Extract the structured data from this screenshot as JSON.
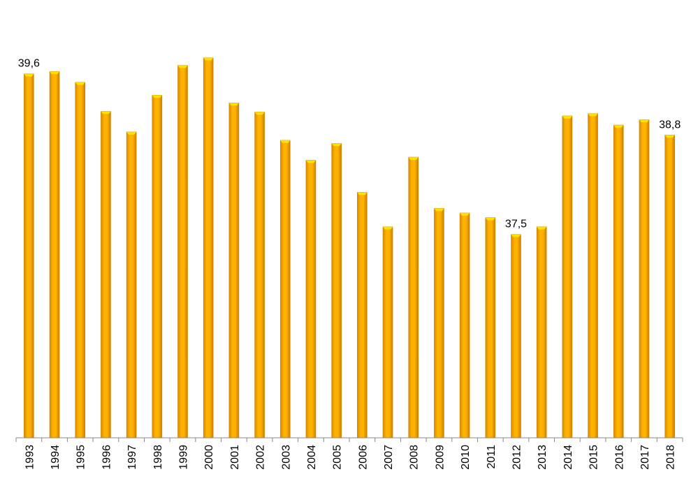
{
  "chart_data": {
    "type": "bar",
    "title": "",
    "xlabel": "",
    "ylabel": "",
    "categories": [
      "1993",
      "1994",
      "1995",
      "1996",
      "1997",
      "1998",
      "1999",
      "2000",
      "2001",
      "2002",
      "2003",
      "2004",
      "2005",
      "2006",
      "2007",
      "2008",
      "2009",
      "2010",
      "2011",
      "2012",
      "2013",
      "2014",
      "2015",
      "2016",
      "2017",
      "2018"
    ],
    "values": [
      39.6,
      39.63,
      39.49,
      39.11,
      38.84,
      39.32,
      39.71,
      39.81,
      39.22,
      39.1,
      38.73,
      38.47,
      38.69,
      38.05,
      37.6,
      38.51,
      37.84,
      37.78,
      37.72,
      37.5,
      37.6,
      39.05,
      39.08,
      38.93,
      39.0,
      38.8
    ],
    "value_labels": [
      {
        "index": 0,
        "text": "39,6"
      },
      {
        "index": 19,
        "text": "37,5"
      },
      {
        "index": 25,
        "text": "38,8"
      }
    ],
    "ylim": [
      34.84,
      40.2
    ],
    "grid": false,
    "legend": "none",
    "colors": {
      "bar": "#FFB000",
      "bar_edge": "#D08400",
      "bar_top": "#FFE100",
      "axis": "#888888"
    }
  }
}
